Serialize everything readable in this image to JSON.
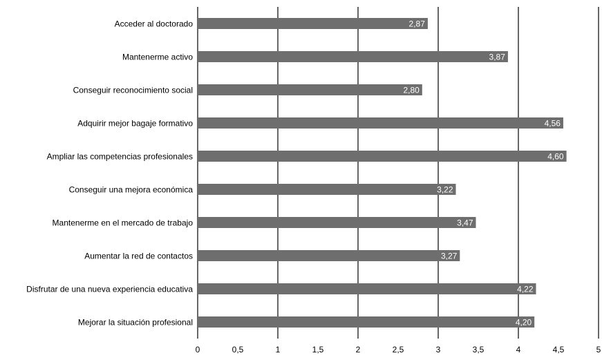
{
  "chart_data": {
    "type": "bar",
    "orientation": "horizontal",
    "categories": [
      "Acceder al doctorado",
      "Mantenerme activo",
      "Conseguir reconocimiento social",
      "Adquirir mejor bagaje formativo",
      "Ampliar las competencias profesionales",
      "Conseguir una mejora económica",
      "Mantenerme en el mercado de trabajo",
      "Aumentar la red de contactos",
      "Disfrutar de una nueva experiencia educativa",
      "Mejorar la situación profesional"
    ],
    "values": [
      2.87,
      3.87,
      2.8,
      4.56,
      4.6,
      3.22,
      3.47,
      3.27,
      4.22,
      4.2
    ],
    "data_labels": [
      "2,87",
      "3,87",
      "2,80",
      "4,56",
      "4,60",
      "3,22",
      "3,47",
      "3,27",
      "4,22",
      "4,20"
    ],
    "x_ticks": [
      "0",
      "0,5",
      "1",
      "1,5",
      "2",
      "2,5",
      "3",
      "3,5",
      "4",
      "4,5",
      "5"
    ],
    "xlim": [
      0,
      5
    ],
    "grid": true,
    "legend": "none",
    "bar_color": "#6e6e6e",
    "title": "",
    "xlabel": "",
    "ylabel": ""
  }
}
